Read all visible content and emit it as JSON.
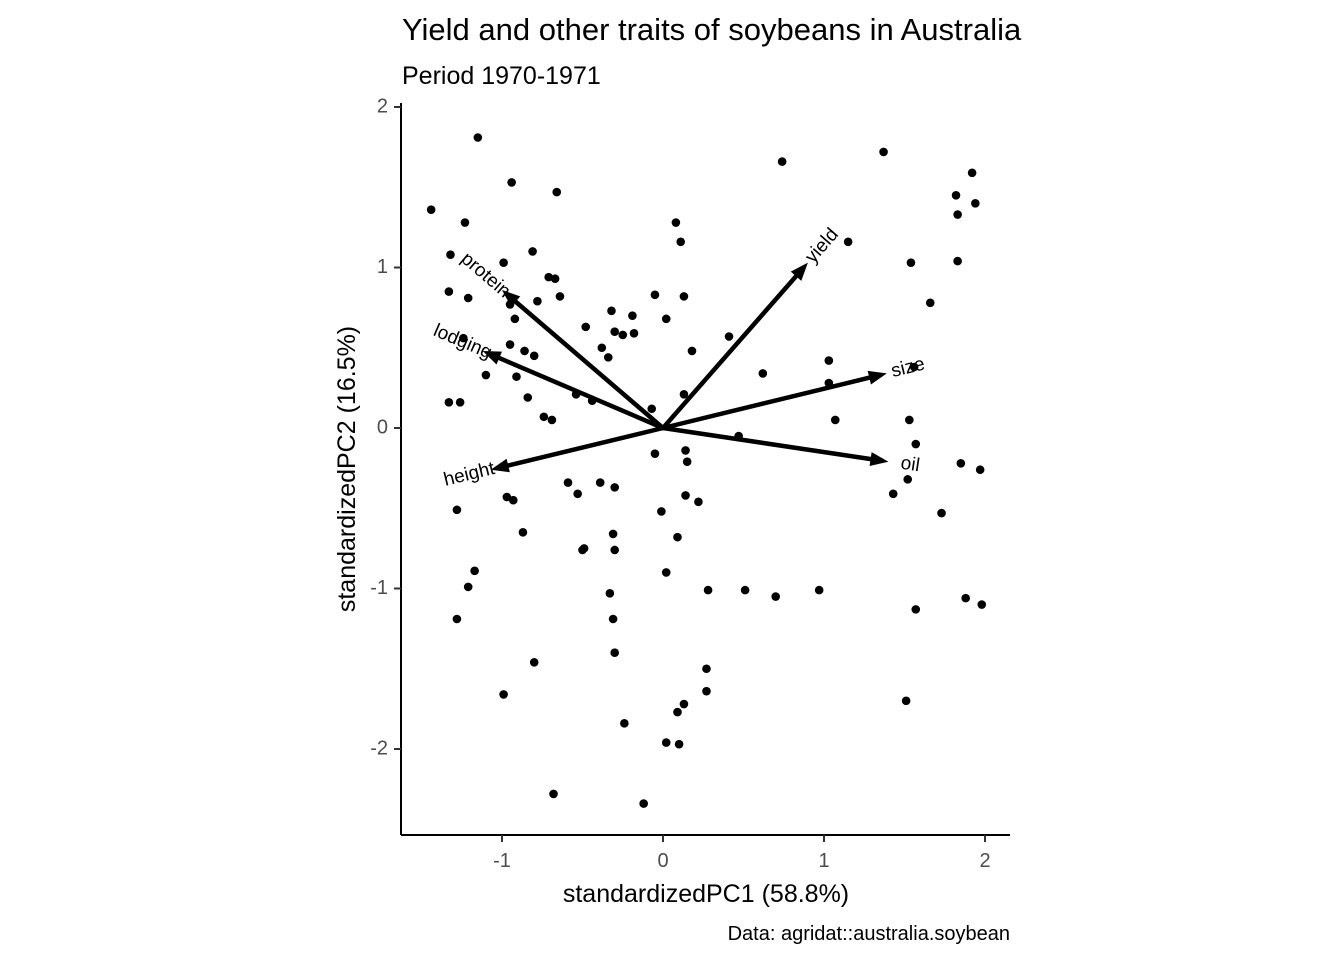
{
  "chart_data": {
    "type": "scatter",
    "subtype": "pca-biplot",
    "title": "Yield and other traits of soybeans in Australia",
    "subtitle": "Period 1970-1971",
    "xlabel": "standardizedPC1 (58.8%)",
    "ylabel": "standardizedPC2 (16.5%)",
    "caption": "Data: agridat::australia.soybean",
    "xlim": [
      -1.6,
      2.15
    ],
    "ylim": [
      -2.53,
      2.0
    ],
    "xticks": [
      -1,
      0,
      1,
      2
    ],
    "yticks": [
      -2,
      -1,
      0,
      1,
      2
    ],
    "grid": false,
    "points": [
      [
        -1.15,
        1.81
      ],
      [
        -0.94,
        1.53
      ],
      [
        -0.66,
        1.47
      ],
      [
        -1.44,
        1.36
      ],
      [
        -1.23,
        1.28
      ],
      [
        -1.32,
        1.08
      ],
      [
        -0.81,
        1.1
      ],
      [
        -0.99,
        1.03
      ],
      [
        -0.71,
        0.94
      ],
      [
        -0.67,
        0.93
      ],
      [
        -1.33,
        0.85
      ],
      [
        -1.21,
        0.81
      ],
      [
        -0.78,
        0.79
      ],
      [
        -0.64,
        0.82
      ],
      [
        -0.95,
        0.77
      ],
      [
        -0.32,
        0.73
      ],
      [
        -0.92,
        0.68
      ],
      [
        -0.48,
        0.63
      ],
      [
        -0.3,
        0.6
      ],
      [
        -0.19,
        0.7
      ],
      [
        -0.18,
        0.59
      ],
      [
        -0.05,
        0.83
      ],
      [
        0.13,
        0.82
      ],
      [
        -1.24,
        0.56
      ],
      [
        -0.95,
        0.52
      ],
      [
        -0.86,
        0.48
      ],
      [
        -0.8,
        0.45
      ],
      [
        -0.38,
        0.5
      ],
      [
        -0.34,
        0.44
      ],
      [
        -0.25,
        0.58
      ],
      [
        0.02,
        0.68
      ],
      [
        0.18,
        0.48
      ],
      [
        0.41,
        0.57
      ],
      [
        -1.1,
        0.33
      ],
      [
        -0.91,
        0.32
      ],
      [
        -0.84,
        0.19
      ],
      [
        -0.54,
        0.21
      ],
      [
        -0.44,
        0.17
      ],
      [
        -0.74,
        0.07
      ],
      [
        -0.69,
        0.05
      ],
      [
        -1.33,
        0.16
      ],
      [
        -1.26,
        0.16
      ],
      [
        -0.07,
        0.12
      ],
      [
        0.13,
        0.21
      ],
      [
        0.62,
        0.34
      ],
      [
        1.03,
        0.42
      ],
      [
        1.03,
        0.28
      ],
      [
        1.07,
        0.05
      ],
      [
        1.53,
        0.05
      ],
      [
        1.56,
        0.38
      ],
      [
        1.57,
        -0.1
      ],
      [
        0.08,
        1.28
      ],
      [
        0.11,
        1.16
      ],
      [
        0.74,
        1.66
      ],
      [
        1.15,
        1.16
      ],
      [
        1.37,
        1.72
      ],
      [
        1.82,
        1.45
      ],
      [
        1.83,
        1.33
      ],
      [
        1.92,
        1.59
      ],
      [
        1.94,
        1.4
      ],
      [
        1.54,
        1.03
      ],
      [
        1.83,
        1.04
      ],
      [
        1.66,
        0.78
      ],
      [
        -0.5,
        -0.76
      ],
      [
        0.14,
        -0.14
      ],
      [
        0.15,
        -0.21
      ],
      [
        -0.05,
        -0.16
      ],
      [
        0.47,
        -0.05
      ],
      [
        -0.3,
        -0.37
      ],
      [
        -0.39,
        -0.34
      ],
      [
        -0.59,
        -0.34
      ],
      [
        -0.53,
        -0.41
      ],
      [
        -0.97,
        -0.43
      ],
      [
        -0.93,
        -0.45
      ],
      [
        -0.87,
        -0.65
      ],
      [
        -1.28,
        -0.51
      ],
      [
        -0.31,
        -0.66
      ],
      [
        -0.3,
        -0.76
      ],
      [
        -0.49,
        -0.75
      ],
      [
        0.14,
        -0.42
      ],
      [
        0.22,
        -0.46
      ],
      [
        -0.01,
        -0.52
      ],
      [
        0.09,
        -0.68
      ],
      [
        0.02,
        -0.9
      ],
      [
        1.43,
        -0.41
      ],
      [
        1.52,
        -0.32
      ],
      [
        1.73,
        -0.53
      ],
      [
        1.85,
        -0.22
      ],
      [
        1.97,
        -0.26
      ],
      [
        -1.17,
        -0.89
      ],
      [
        -1.21,
        -0.99
      ],
      [
        -1.28,
        -1.19
      ],
      [
        -0.33,
        -1.03
      ],
      [
        -0.31,
        -1.19
      ],
      [
        -0.3,
        -1.4
      ],
      [
        0.28,
        -1.01
      ],
      [
        0.51,
        -1.01
      ],
      [
        0.7,
        -1.05
      ],
      [
        0.97,
        -1.01
      ],
      [
        1.57,
        -1.13
      ],
      [
        1.88,
        -1.06
      ],
      [
        1.98,
        -1.1
      ],
      [
        -0.8,
        -1.46
      ],
      [
        -0.99,
        -1.66
      ],
      [
        -0.24,
        -1.84
      ],
      [
        0.27,
        -1.5
      ],
      [
        0.27,
        -1.64
      ],
      [
        0.13,
        -1.72
      ],
      [
        0.09,
        -1.77
      ],
      [
        0.02,
        -1.96
      ],
      [
        0.1,
        -1.97
      ],
      [
        -0.68,
        -2.28
      ],
      [
        -0.12,
        -2.34
      ],
      [
        1.51,
        -1.7
      ]
    ],
    "loadings": [
      {
        "name": "yield",
        "x": 0.9,
        "y": 1.03
      },
      {
        "name": "protein",
        "x": -1.0,
        "y": 0.86
      },
      {
        "name": "lodging",
        "x": -1.12,
        "y": 0.48
      },
      {
        "name": "size",
        "x": 1.39,
        "y": 0.34
      },
      {
        "name": "oil",
        "x": 1.4,
        "y": -0.21
      },
      {
        "name": "height",
        "x": -1.07,
        "y": -0.26
      }
    ]
  }
}
